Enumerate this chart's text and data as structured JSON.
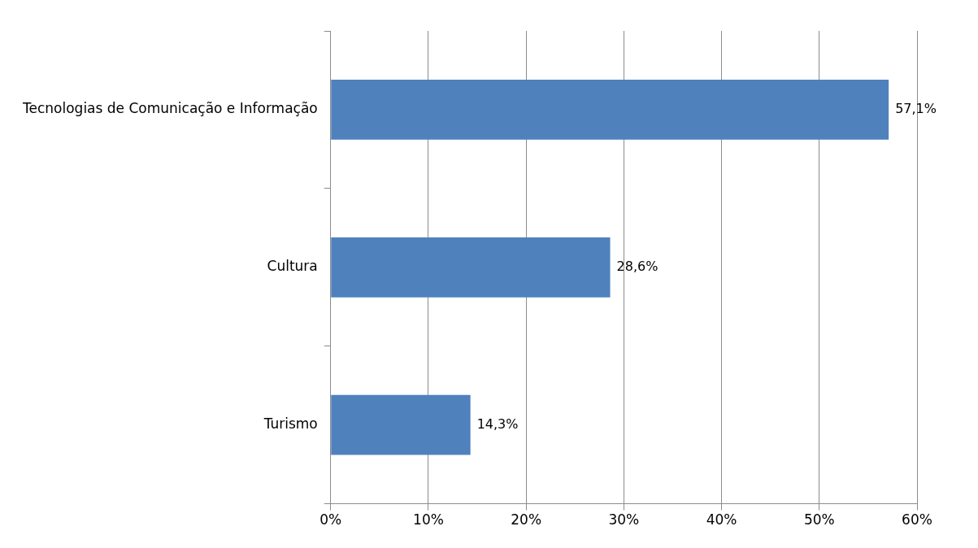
{
  "chart_data": {
    "type": "bar",
    "orientation": "horizontal",
    "categories": [
      "Tecnologias de Comunicação e Informação",
      "Cultura",
      "Turismo"
    ],
    "values": [
      57.1,
      28.6,
      14.3
    ],
    "value_labels": [
      "57,1%",
      "28,6%",
      "14,3%"
    ],
    "color": "#4f81bd",
    "xlim": [
      0,
      60
    ],
    "xticks": [
      {
        "value": 0,
        "label": "0%"
      },
      {
        "value": 10,
        "label": "10%"
      },
      {
        "value": 20,
        "label": "20%"
      },
      {
        "value": 30,
        "label": "30%"
      },
      {
        "value": 40,
        "label": "40%"
      },
      {
        "value": 50,
        "label": "50%"
      },
      {
        "value": 60,
        "label": "60%"
      }
    ],
    "grid": "x",
    "legend": false
  }
}
